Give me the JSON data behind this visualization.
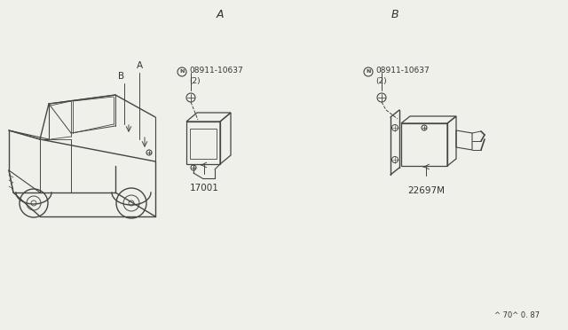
{
  "bg_color": "#f0f0eb",
  "line_color": "#444444",
  "text_color": "#333333",
  "footer_text": "^ 70^ 0. 87",
  "label_A_car": "A",
  "label_B_car": "B",
  "part_number_text": "08911-10637\n(2)",
  "part_label_1": "17001",
  "part_label_2": "22697M",
  "section_A": "A",
  "section_B": "B"
}
